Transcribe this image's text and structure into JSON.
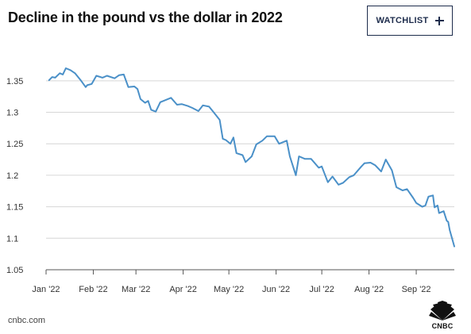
{
  "header": {
    "title": "Decline in the pound vs the dollar in 2022",
    "watchlist_label": "WATCHLIST",
    "watchlist_icon": "plus-icon"
  },
  "footer": {
    "source": "cnbc.com",
    "logo_text": "CNBC",
    "logo_icon": "cnbc-peacock-logo"
  },
  "colors": {
    "line": "#4a90c8",
    "grid": "#d6d6d6",
    "axis": "#555555",
    "button_border": "#1d2c4c"
  },
  "chart_data": {
    "type": "line",
    "title": "Decline in the pound vs the dollar in 2022",
    "xlabel": "",
    "ylabel": "",
    "ylim": [
      1.05,
      1.375
    ],
    "grid": true,
    "yticks": [
      1.05,
      1.1,
      1.15,
      1.2,
      1.25,
      1.3,
      1.35
    ],
    "ytick_labels": [
      "1.05",
      "1.1",
      "1.15",
      "1.2",
      "1.25",
      "1.3",
      "1.35"
    ],
    "xticks": [
      "2022-01-01",
      "2022-02-01",
      "2022-03-01",
      "2022-04-01",
      "2022-05-01",
      "2022-06-01",
      "2022-07-01",
      "2022-08-01",
      "2022-09-01"
    ],
    "xtick_labels": [
      "Jan '22",
      "Feb '22",
      "Mar '22",
      "Apr '22",
      "May '22",
      "Jun '22",
      "Jul '22",
      "Aug '22",
      "Sep '22"
    ],
    "series": [
      {
        "x": [
          "2022-01-03",
          "2022-01-05",
          "2022-01-07",
          "2022-01-10",
          "2022-01-12",
          "2022-01-14",
          "2022-01-17",
          "2022-01-20",
          "2022-01-24",
          "2022-01-27",
          "2022-01-28",
          "2022-01-31",
          "2022-02-03",
          "2022-02-07",
          "2022-02-10",
          "2022-02-15",
          "2022-02-18",
          "2022-02-21",
          "2022-02-24",
          "2022-02-28",
          "2022-03-02",
          "2022-03-04",
          "2022-03-07",
          "2022-03-09",
          "2022-03-11",
          "2022-03-14",
          "2022-03-17",
          "2022-03-21",
          "2022-03-24",
          "2022-03-28",
          "2022-03-31",
          "2022-04-04",
          "2022-04-07",
          "2022-04-11",
          "2022-04-14",
          "2022-04-18",
          "2022-04-21",
          "2022-04-25",
          "2022-04-27",
          "2022-04-29",
          "2022-05-02",
          "2022-05-04",
          "2022-05-06",
          "2022-05-10",
          "2022-05-12",
          "2022-05-16",
          "2022-05-19",
          "2022-05-23",
          "2022-05-26",
          "2022-05-31",
          "2022-06-03",
          "2022-06-08",
          "2022-06-10",
          "2022-06-14",
          "2022-06-16",
          "2022-06-20",
          "2022-06-24",
          "2022-06-29",
          "2022-07-01",
          "2022-07-05",
          "2022-07-08",
          "2022-07-12",
          "2022-07-15",
          "2022-07-19",
          "2022-07-22",
          "2022-07-27",
          "2022-07-29",
          "2022-08-02",
          "2022-08-05",
          "2022-08-09",
          "2022-08-12",
          "2022-08-16",
          "2022-08-19",
          "2022-08-23",
          "2022-08-26",
          "2022-08-30",
          "2022-09-01",
          "2022-09-05",
          "2022-09-07",
          "2022-09-09",
          "2022-09-12",
          "2022-09-13",
          "2022-09-15",
          "2022-09-16",
          "2022-09-19",
          "2022-09-21",
          "2022-09-22",
          "2022-09-23",
          "2022-09-26"
        ],
        "values": [
          1.351,
          1.356,
          1.355,
          1.362,
          1.36,
          1.37,
          1.367,
          1.362,
          1.35,
          1.34,
          1.343,
          1.345,
          1.358,
          1.355,
          1.358,
          1.354,
          1.359,
          1.36,
          1.34,
          1.341,
          1.337,
          1.321,
          1.315,
          1.318,
          1.304,
          1.301,
          1.316,
          1.32,
          1.323,
          1.312,
          1.313,
          1.31,
          1.307,
          1.302,
          1.311,
          1.309,
          1.3,
          1.288,
          1.258,
          1.256,
          1.25,
          1.26,
          1.235,
          1.232,
          1.221,
          1.23,
          1.249,
          1.255,
          1.262,
          1.262,
          1.25,
          1.255,
          1.23,
          1.2,
          1.23,
          1.226,
          1.226,
          1.212,
          1.214,
          1.189,
          1.198,
          1.185,
          1.188,
          1.197,
          1.2,
          1.214,
          1.219,
          1.22,
          1.216,
          1.206,
          1.225,
          1.208,
          1.181,
          1.176,
          1.178,
          1.164,
          1.156,
          1.15,
          1.152,
          1.166,
          1.168,
          1.149,
          1.152,
          1.14,
          1.143,
          1.128,
          1.126,
          1.113,
          1.087
        ]
      }
    ]
  }
}
